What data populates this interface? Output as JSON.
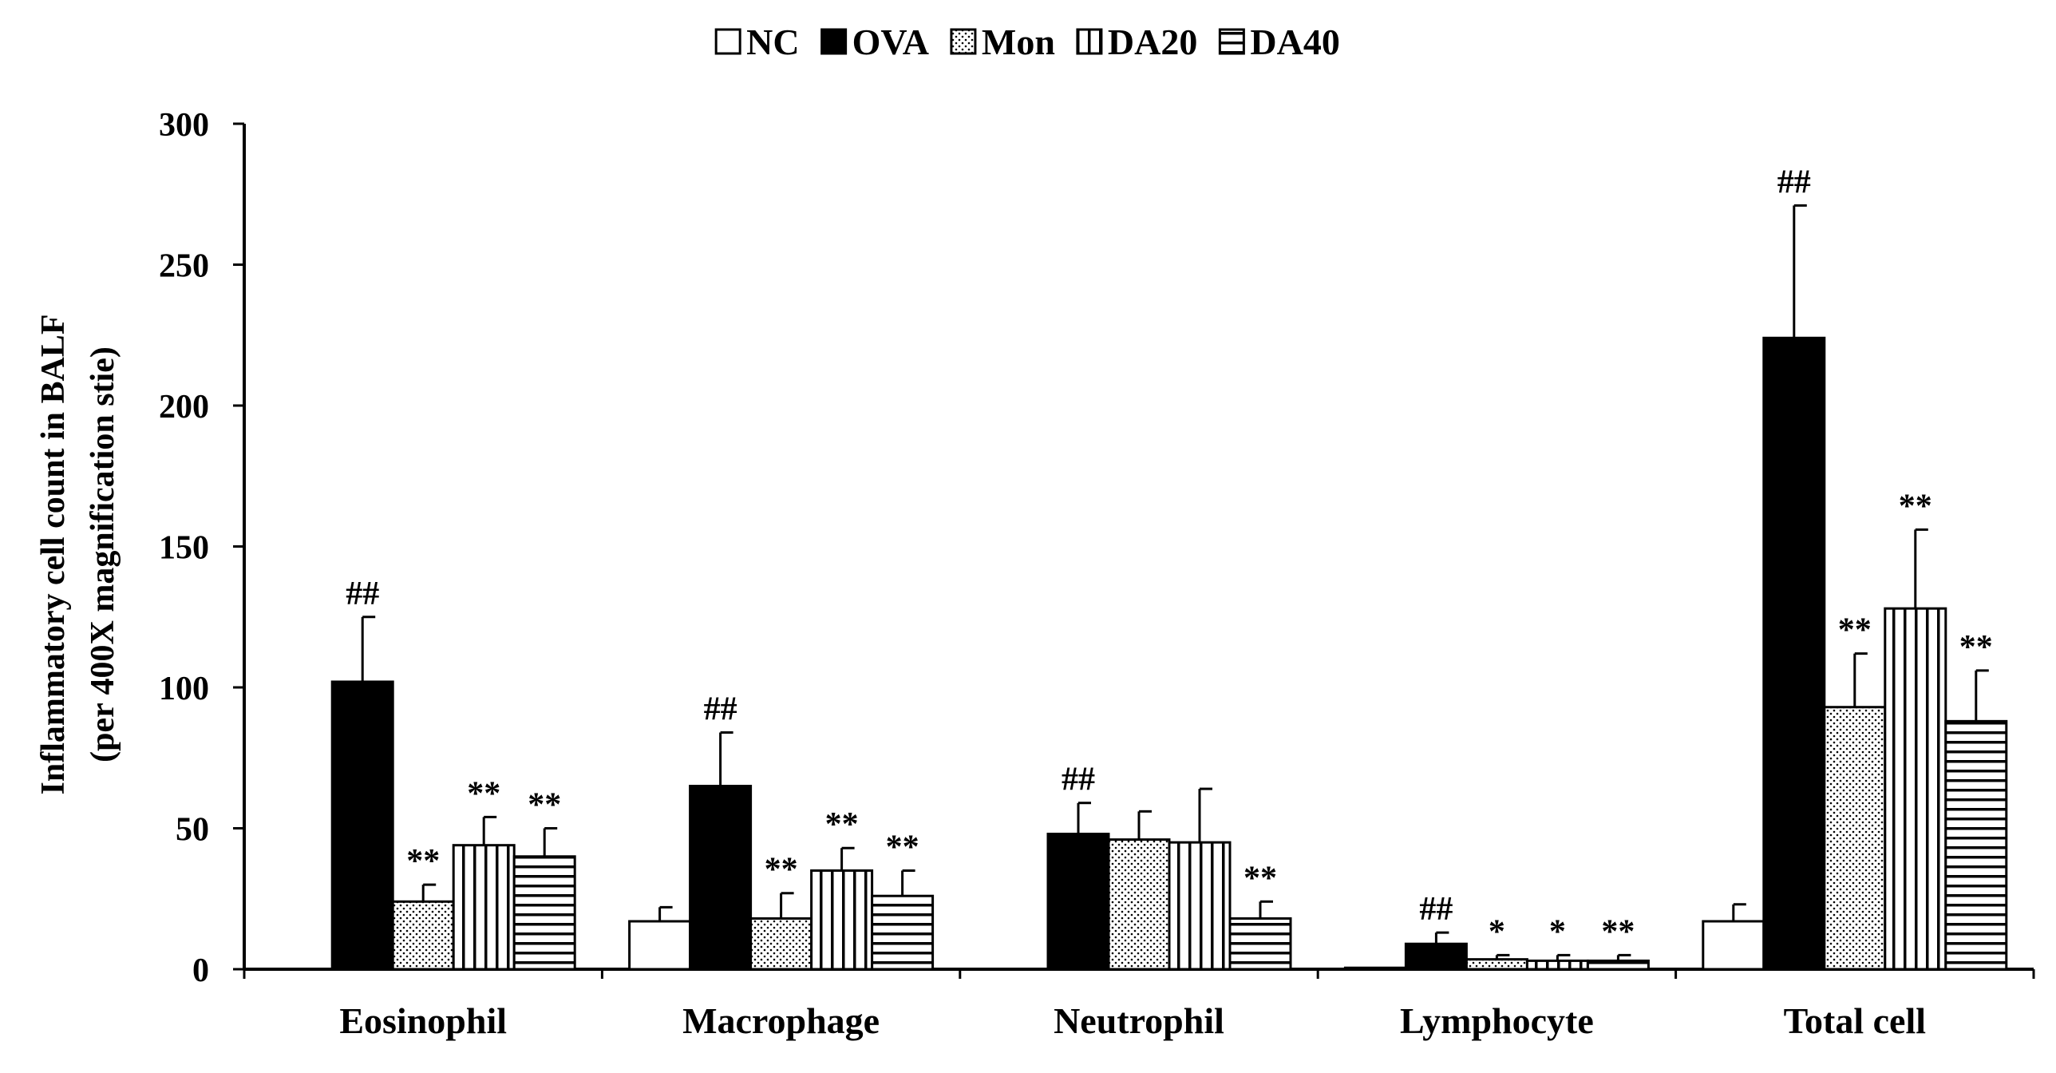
{
  "chart_data": {
    "type": "bar",
    "title": "",
    "xlabel": "",
    "ylabel_lines": [
      "Inflammatory cell count in BALF",
      "(per 400X magnification stie)"
    ],
    "ylim": [
      0,
      300
    ],
    "yticks": [
      0,
      50,
      100,
      150,
      200,
      250,
      300
    ],
    "legend_position": "top-center",
    "categories": [
      "Eosinophil",
      "Macrophage",
      "Neutrophil",
      "Lymphocyte",
      "Total cell"
    ],
    "series": [
      {
        "name": "NC",
        "pattern": "white",
        "values": [
          0,
          17,
          0,
          0.5,
          17
        ],
        "errors": [
          0,
          5,
          0,
          0,
          6
        ],
        "annotations": [
          "",
          "",
          "",
          "",
          ""
        ]
      },
      {
        "name": "OVA",
        "pattern": "black",
        "values": [
          102,
          65,
          48,
          9,
          224
        ],
        "errors": [
          23,
          19,
          11,
          4,
          47
        ],
        "annotations": [
          "##",
          "##",
          "##",
          "##",
          "##"
        ]
      },
      {
        "name": "Mon",
        "pattern": "dots",
        "values": [
          24,
          18,
          46,
          3.5,
          93
        ],
        "errors": [
          6,
          9,
          10,
          1.5,
          19
        ],
        "annotations": [
          "**",
          "**",
          "",
          "*",
          "**"
        ]
      },
      {
        "name": "DA20",
        "pattern": "vertical",
        "values": [
          44,
          35,
          45,
          3,
          128
        ],
        "errors": [
          10,
          8,
          19,
          2,
          28
        ],
        "annotations": [
          "**",
          "**",
          "",
          "*",
          "**"
        ]
      },
      {
        "name": "DA40",
        "pattern": "horizontal",
        "values": [
          40,
          26,
          18,
          3,
          88
        ],
        "errors": [
          10,
          9,
          6,
          2,
          18
        ],
        "annotations": [
          "**",
          "**",
          "**",
          "**",
          "**"
        ]
      }
    ]
  }
}
